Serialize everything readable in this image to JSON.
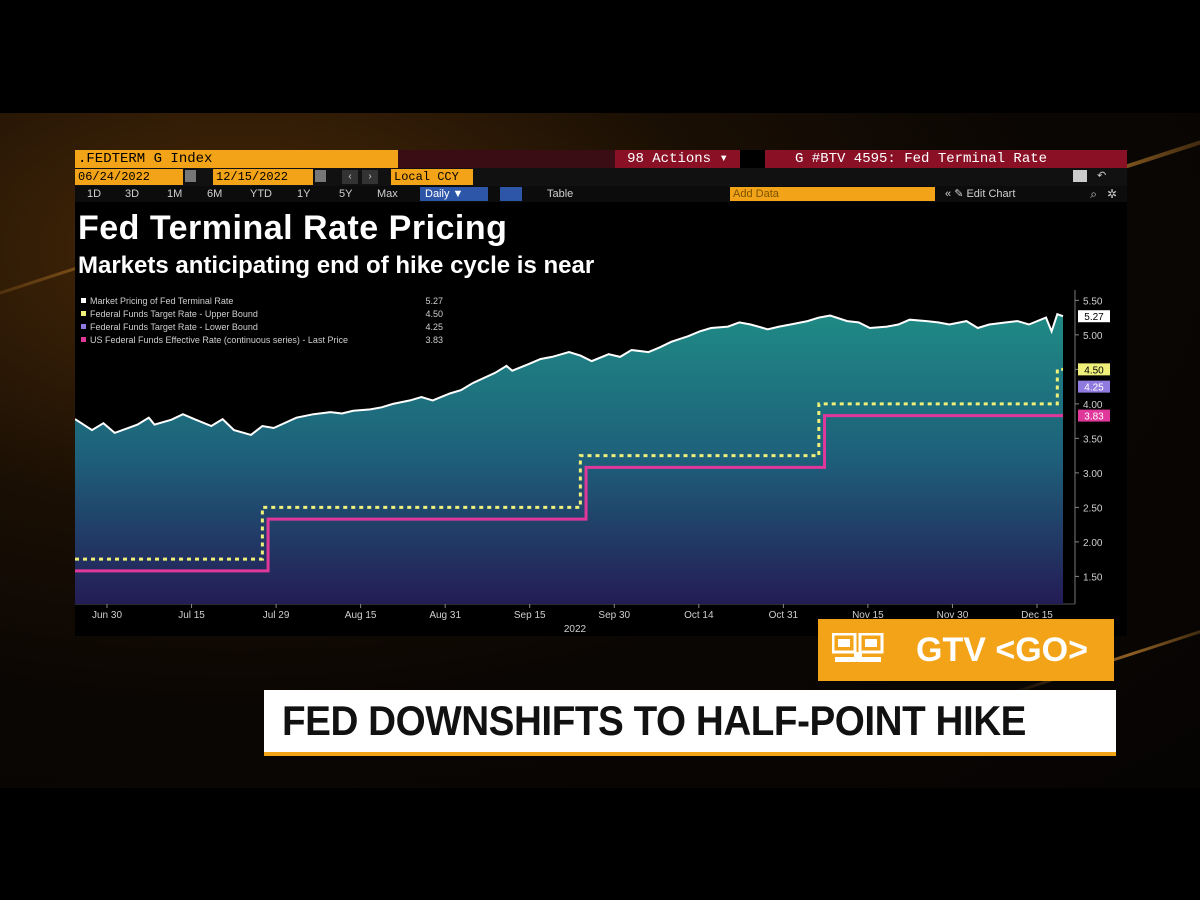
{
  "terminal": {
    "ticker": ".FEDTERM G Index",
    "actions": "98 Actions",
    "actions_caret": "▾",
    "page_title": "G #BTV 4595: Fed Terminal Rate",
    "start_date": "06/24/2022",
    "end_date": "12/15/2022",
    "currency": "Local CCY",
    "ranges": [
      "1D",
      "3D",
      "1M",
      "6M",
      "YTD",
      "1Y",
      "5Y",
      "Max"
    ],
    "frequency": "Daily ▼",
    "table_label": "Table",
    "add_data": "Add Data",
    "edit_chart": "Edit Chart",
    "icons": [
      "calendar-icon",
      "prev-icon",
      "next-icon",
      "collapse-icon",
      "pencil-icon",
      "comment-icon",
      "undo-icon",
      "search-icon",
      "settings-icon"
    ]
  },
  "title": "Fed Terminal Rate Pricing",
  "subtitle": "Markets anticipating end of hike cycle is near",
  "chart_data": {
    "type": "line",
    "legend": [
      {
        "name": "Market Pricing of Fed Terminal Rate",
        "last": "5.27",
        "color": "#ffffff"
      },
      {
        "name": "Federal Funds Target Rate - Upper Bound",
        "last": "4.50",
        "color": "#eef07a"
      },
      {
        "name": "Federal Funds Target Rate - Lower Bound",
        "last": "4.25",
        "color": "#8f7ae0"
      },
      {
        "name": "US Federal Funds Effective Rate (continuous series) - Last Price",
        "last": "3.83",
        "color": "#e0379a"
      }
    ],
    "x_ticks": [
      "Jun 30",
      "Jul 15",
      "Jul 29",
      "Aug 15",
      "Aug 31",
      "Sep 15",
      "Sep 30",
      "Oct 14",
      "Oct 31",
      "Nov 15",
      "Nov 30",
      "Dec 15"
    ],
    "x_year": "2022",
    "y_ticks": [
      "5.50",
      "5.00",
      "4.50",
      "4.00",
      "3.50",
      "3.00",
      "2.50",
      "2.00",
      "1.50"
    ],
    "ylim": [
      1.1,
      5.65
    ],
    "dates": [
      "06-24",
      "06-27",
      "06-29",
      "07-01",
      "07-05",
      "07-07",
      "07-08",
      "07-11",
      "07-13",
      "07-15",
      "07-18",
      "07-20",
      "07-22",
      "07-25",
      "07-27",
      "07-29",
      "08-02",
      "08-05",
      "08-08",
      "08-10",
      "08-12",
      "08-15",
      "08-17",
      "08-19",
      "08-22",
      "08-24",
      "08-26",
      "08-29",
      "08-31",
      "09-02",
      "09-06",
      "09-08",
      "09-09",
      "09-12",
      "09-14",
      "09-16",
      "09-19",
      "09-21",
      "09-23",
      "09-26",
      "09-28",
      "09-30",
      "10-03",
      "10-05",
      "10-07",
      "10-10",
      "10-12",
      "10-14",
      "10-17",
      "10-19",
      "10-21",
      "10-24",
      "10-26",
      "10-28",
      "10-31",
      "11-02",
      "11-04",
      "11-07",
      "11-09",
      "11-11",
      "11-14",
      "11-16",
      "11-18",
      "11-21",
      "11-23",
      "11-25",
      "11-28",
      "11-30",
      "12-02",
      "12-05",
      "12-07",
      "12-09",
      "12-12",
      "12-13",
      "12-14",
      "12-15"
    ],
    "series": [
      {
        "name": "Market Pricing of Fed Terminal Rate",
        "values": [
          3.78,
          3.62,
          3.72,
          3.58,
          3.7,
          3.8,
          3.7,
          3.77,
          3.85,
          3.78,
          3.68,
          3.78,
          3.62,
          3.55,
          3.68,
          3.65,
          3.8,
          3.85,
          3.88,
          3.86,
          3.9,
          3.92,
          3.95,
          4.0,
          4.05,
          4.1,
          4.05,
          4.15,
          4.2,
          4.3,
          4.45,
          4.55,
          4.48,
          4.58,
          4.65,
          4.68,
          4.75,
          4.7,
          4.62,
          4.72,
          4.68,
          4.78,
          4.75,
          4.82,
          4.9,
          4.98,
          5.05,
          5.1,
          5.12,
          5.18,
          5.15,
          5.08,
          5.12,
          5.15,
          5.2,
          5.25,
          5.28,
          5.2,
          5.18,
          5.1,
          5.12,
          5.15,
          5.22,
          5.2,
          5.18,
          5.15,
          5.2,
          5.1,
          5.15,
          5.18,
          5.2,
          5.15,
          5.25,
          5.05,
          5.3,
          5.27
        ]
      },
      {
        "name": "Federal Funds Target Rate - Upper Bound",
        "steps": [
          [
            "06-24",
            1.75
          ],
          [
            "07-27",
            2.5
          ],
          [
            "09-21",
            3.25
          ],
          [
            "11-02",
            4.0
          ],
          [
            "12-14",
            4.5
          ]
        ]
      },
      {
        "name": "US Federal Funds Effective Rate (continuous series) - Last Price",
        "steps": [
          [
            "06-24",
            1.58
          ],
          [
            "07-28",
            2.33
          ],
          [
            "09-22",
            3.08
          ],
          [
            "11-03",
            3.83
          ]
        ]
      }
    ],
    "last_labels": [
      {
        "text": "5.27",
        "value": 5.27,
        "bg": "#ffffff",
        "fg": "#000"
      },
      {
        "text": "4.50",
        "value": 4.5,
        "bg": "#eef07a",
        "fg": "#000"
      },
      {
        "text": "4.25",
        "value": 4.25,
        "bg": "#8f7ae0",
        "fg": "#fff"
      },
      {
        "text": "3.83",
        "value": 3.83,
        "bg": "#e0379a",
        "fg": "#fff"
      }
    ]
  },
  "gtv_label": "GTV <GO>",
  "headline": "FED DOWNSHIFTS TO HALF-POINT HIKE"
}
